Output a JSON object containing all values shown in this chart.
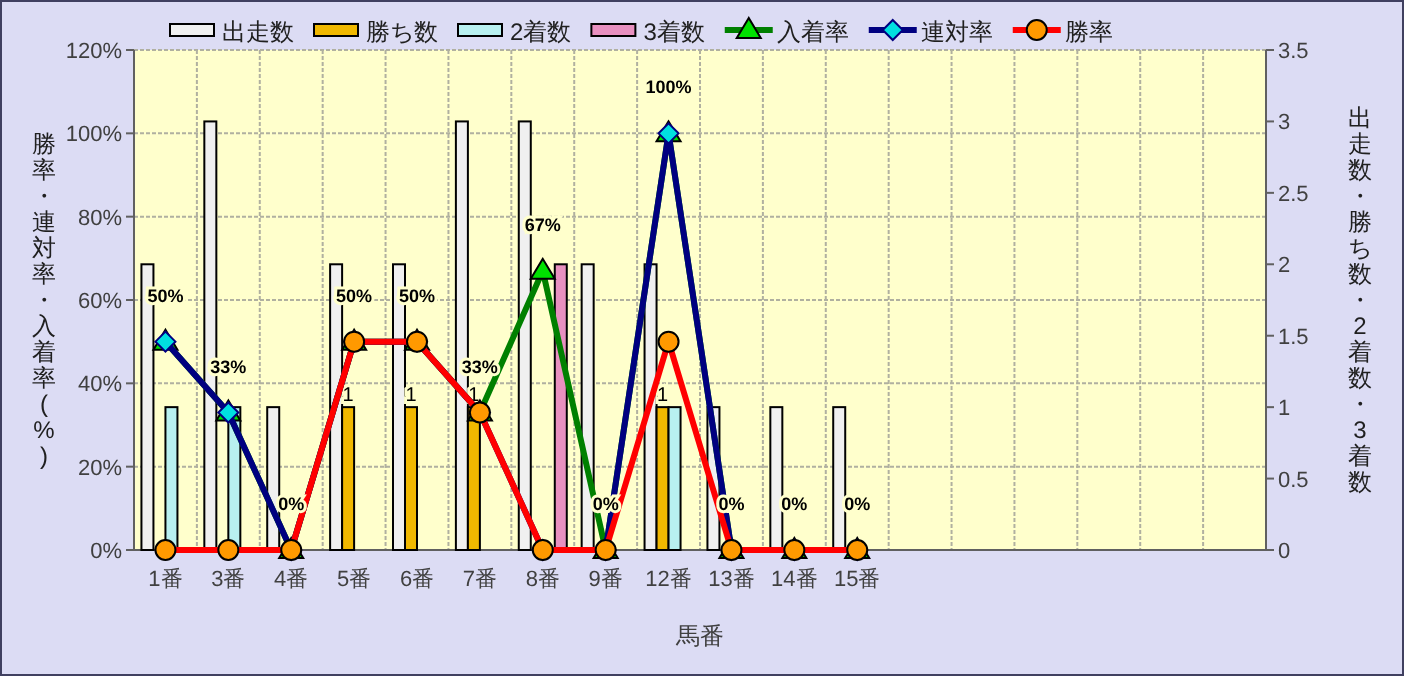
{
  "chart_data": {
    "type": "bar",
    "categories": [
      "1番",
      "3番",
      "4番",
      "5番",
      "6番",
      "7番",
      "8番",
      "9番",
      "12番",
      "13番",
      "14番",
      "15番",
      null,
      null,
      null,
      null,
      null,
      null
    ],
    "xlabel": "馬番",
    "ylabel": "勝率・連対率・入着率(%)",
    "y2label": "出走数・勝ち数・2着数・3着数",
    "ylim": [
      0,
      120
    ],
    "yticks": [
      {
        "value": 0,
        "label": "0%"
      },
      {
        "value": 20,
        "label": "20%"
      },
      {
        "value": 40,
        "label": "40%"
      },
      {
        "value": 60,
        "label": "60%"
      },
      {
        "value": 80,
        "label": "80%"
      },
      {
        "value": 100,
        "label": "100%"
      },
      {
        "value": 120,
        "label": "120%"
      }
    ],
    "y2lim": [
      0,
      3.5
    ],
    "y2ticks": [
      0,
      0.5,
      1,
      1.5,
      2,
      2.5,
      3,
      3.5
    ],
    "grid": true,
    "legend": "top",
    "series": [
      {
        "name": "出走数",
        "axis": "y2",
        "color": "#f0f0f0",
        "values": [
          2,
          3,
          1,
          2,
          2,
          3,
          3,
          2,
          2,
          1,
          1,
          1,
          null,
          null,
          null,
          null,
          null,
          null
        ]
      },
      {
        "name": "勝ち数",
        "axis": "y2",
        "color": "#f0b800",
        "values": [
          0,
          0,
          0,
          1,
          1,
          1,
          0,
          0,
          1,
          0,
          0,
          0,
          null,
          null,
          null,
          null,
          null,
          null
        ],
        "value_labels": [
          null,
          null,
          null,
          "1",
          "1",
          "1",
          null,
          null,
          "1",
          null,
          null,
          null,
          null,
          null,
          null,
          null,
          null,
          null
        ]
      },
      {
        "name": "2着数",
        "axis": "y2",
        "color": "#b8f0f0",
        "values": [
          1,
          1,
          0,
          0,
          0,
          0,
          0,
          0,
          1,
          0,
          0,
          0,
          null,
          null,
          null,
          null,
          null,
          null
        ]
      },
      {
        "name": "3着数",
        "axis": "y2",
        "color": "#e890c0",
        "values": [
          0,
          0,
          0,
          0,
          0,
          0,
          2,
          0,
          0,
          0,
          0,
          0,
          null,
          null,
          null,
          null,
          null,
          null
        ]
      },
      {
        "name": "入着率",
        "type": "line",
        "color": "#008000",
        "marker": "triangle",
        "value_labels": [
          "50%",
          "33%",
          "0%",
          "50%",
          "50%",
          "33%",
          "67%",
          "0%",
          "100%",
          "0%",
          "0%",
          "0%",
          null,
          null,
          null,
          null,
          null,
          null
        ],
        "values": [
          50,
          33,
          0,
          50,
          50,
          33,
          67,
          0,
          100,
          0,
          0,
          0,
          null,
          null,
          null,
          null,
          null,
          null
        ]
      },
      {
        "name": "連対率",
        "type": "line",
        "color": "#000080",
        "marker": "diamond",
        "values": [
          50,
          33,
          0,
          50,
          50,
          33,
          0,
          0,
          100,
          0,
          0,
          0,
          null,
          null,
          null,
          null,
          null,
          null
        ]
      },
      {
        "name": "勝率",
        "type": "line",
        "color": "#ff0000",
        "marker": "circle",
        "values": [
          0,
          0,
          0,
          50,
          50,
          33,
          0,
          0,
          50,
          0,
          0,
          0,
          null,
          null,
          null,
          null,
          null,
          null
        ]
      }
    ]
  }
}
